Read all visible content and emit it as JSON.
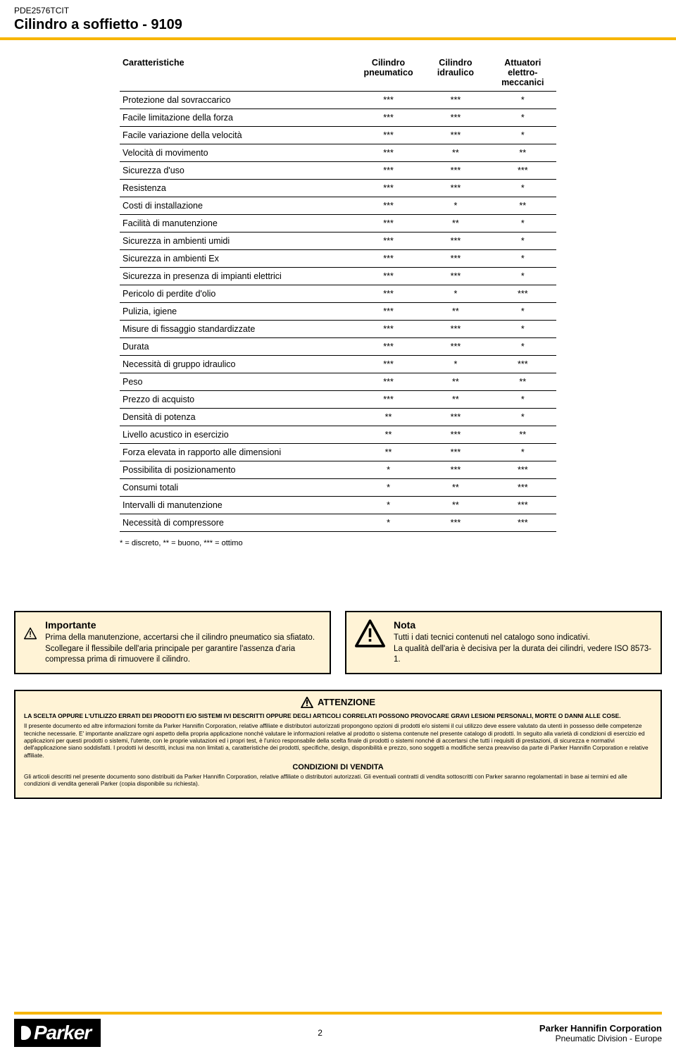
{
  "header": {
    "doc_code": "PDE2576TCIT",
    "doc_title": "Cilindro a soffietto - 9109"
  },
  "table": {
    "columns": [
      "Caratteristiche",
      "Cilindro pneumatico",
      "Cilindro idraulico",
      "Attuatori elettro-meccanici"
    ],
    "rows": [
      {
        "label": "Protezione dal sovraccarico",
        "c1": "***",
        "c2": "***",
        "c3": "*"
      },
      {
        "label": "Facile limitazione della forza",
        "c1": "***",
        "c2": "***",
        "c3": "*"
      },
      {
        "label": "Facile variazione della velocità",
        "c1": "***",
        "c2": "***",
        "c3": "*"
      },
      {
        "label": "Velocità di movimento",
        "c1": "***",
        "c2": "**",
        "c3": "**"
      },
      {
        "label": "Sicurezza d'uso",
        "c1": "***",
        "c2": "***",
        "c3": "***"
      },
      {
        "label": "Resistenza",
        "c1": "***",
        "c2": "***",
        "c3": "*"
      },
      {
        "label": "Costi di installazione",
        "c1": "***",
        "c2": "*",
        "c3": "**"
      },
      {
        "label": "Facilità di manutenzione",
        "c1": "***",
        "c2": "**",
        "c3": "*"
      },
      {
        "label": "Sicurezza in ambienti umidi",
        "c1": "***",
        "c2": "***",
        "c3": "*"
      },
      {
        "label": "Sicurezza in ambienti Ex",
        "c1": "***",
        "c2": "***",
        "c3": "*"
      },
      {
        "label": "Sicurezza in presenza di impianti elettrici",
        "c1": "***",
        "c2": "***",
        "c3": "*"
      },
      {
        "label": "Pericolo di perdite d'olio",
        "c1": "***",
        "c2": "*",
        "c3": "***"
      },
      {
        "label": "Pulizia, igiene",
        "c1": "***",
        "c2": "**",
        "c3": "*"
      },
      {
        "label": "Misure di fissaggio standardizzate",
        "c1": "***",
        "c2": "***",
        "c3": "*"
      },
      {
        "label": "Durata",
        "c1": "***",
        "c2": "***",
        "c3": "*"
      },
      {
        "label": "Necessità di gruppo idraulico",
        "c1": "***",
        "c2": "*",
        "c3": "***"
      },
      {
        "label": "Peso",
        "c1": "***",
        "c2": "**",
        "c3": "**"
      },
      {
        "label": "Prezzo di acquisto",
        "c1": "***",
        "c2": "**",
        "c3": "*"
      },
      {
        "label": "Densità di potenza",
        "c1": "**",
        "c2": "***",
        "c3": "*"
      },
      {
        "label": "Livello acustico in esercizio",
        "c1": "**",
        "c2": "***",
        "c3": "**"
      },
      {
        "label": "Forza elevata in rapporto alle dimensioni",
        "c1": "**",
        "c2": "***",
        "c3": "*"
      },
      {
        "label": "Possibilita di posizionamento",
        "c1": "*",
        "c2": "***",
        "c3": "***"
      },
      {
        "label": "Consumi totali",
        "c1": "*",
        "c2": "**",
        "c3": "***"
      },
      {
        "label": "Intervalli di manutenzione",
        "c1": "*",
        "c2": "**",
        "c3": "***"
      },
      {
        "label": "Necessità di compressore",
        "c1": "*",
        "c2": "***",
        "c3": "***"
      }
    ],
    "legend": "* = discreto, ** = buono, *** = ottimo"
  },
  "notices": {
    "important": {
      "title": "Importante",
      "text": "Prima della manutenzione, accertarsi che il cilindro pneumatico sia sfiatato. Scollegare il flessibile dell'aria principale per garantire l'assenza d'aria compressa prima di rimuovere il cilindro."
    },
    "nota": {
      "title": "Nota",
      "text": "Tutti i dati tecnici contenuti nel catalogo sono indicativi.\nLa qualità dell'aria è decisiva per la durata dei cilindri, vedere ISO 8573-1."
    }
  },
  "attention": {
    "heading": "ATTENZIONE",
    "p1_bold": "LA SCELTA OPPURE L'UTILIZZO ERRATI DEI PRODOTTI E/O SISTEMI IVI DESCRITTI OPPURE DEGLI ARTICOLI CORRELATI POSSONO PROVOCARE GRAVI LESIONI PERSONALI, MORTE O DANNI ALLE COSE.",
    "p2": "Il presente documento ed altre informazioni fornite da Parker Hannifin Corporation, relative affiliate e distributori autorizzati propongono opzioni di prodotti e/o sistemi il cui utilizzo deve essere valutato da utenti in possesso delle competenze tecniche necessarie. E' importante analizzare ogni aspetto della propria applicazione nonché valutare le informazioni relative al prodotto o sistema contenute nel presente catalogo di prodotti. In seguito alla varietà di condizioni di esercizio ed applicazioni per questi prodotti o sistemi, l'utente, con le proprie valutazioni ed i propri test, è l'unico responsabile della scelta finale di prodotti o sistemi nonché di accertarsi che tutti i requisiti di prestazioni, di sicurezza e normativi dell'applicazione siano soddisfatti. I prodotti ivi descritti, inclusi ma non limitati a, caratteristiche dei prodotti, specifiche, design, disponibilità e prezzo, sono soggetti a modifiche senza preavviso da parte di Parker Hannifin Corporation e relative affiliate.",
    "h5": "CONDIZIONI DI VENDITA",
    "p3": "Gli articoli descritti nel presente documento sono distribuiti da Parker Hannifin Corporation, relative affiliate o distributori autorizzati. Gli eventuali contratti di vendita sottoscritti con Parker saranno regolamentati in base ai termini ed alle condizioni di vendita generali Parker (copia disponibile su richiesta)."
  },
  "footer": {
    "logo_text": "Parker",
    "page_num": "2",
    "corp": "Parker Hannifin Corporation",
    "division": "Pneumatic Division - Europe"
  },
  "colors": {
    "accent": "#f7b500",
    "notice_bg": "#fff3d6",
    "text": "#000000",
    "bg": "#ffffff"
  }
}
